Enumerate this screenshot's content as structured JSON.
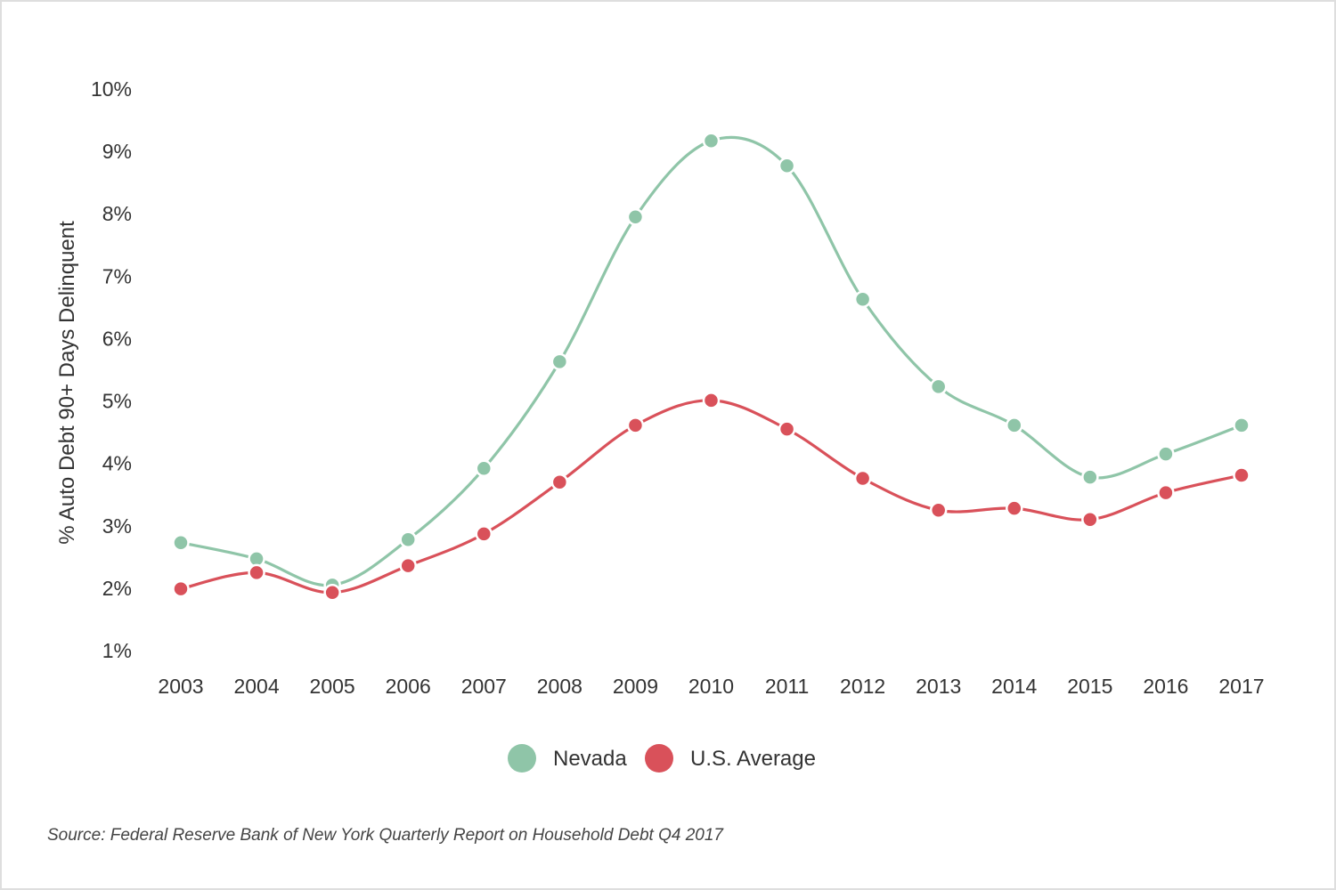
{
  "chart_data": {
    "type": "line",
    "title": "",
    "xlabel": "",
    "ylabel": "% Auto Debt 90+ Days Delinquent",
    "x": [
      "2003",
      "2004",
      "2005",
      "2006",
      "2007",
      "2008",
      "2009",
      "2010",
      "2011",
      "2012",
      "2013",
      "2014",
      "2015",
      "2016",
      "2017"
    ],
    "ylim": [
      1,
      10
    ],
    "yticks": [
      "1%",
      "2%",
      "3%",
      "4%",
      "5%",
      "6%",
      "7%",
      "8%",
      "9%",
      "10%"
    ],
    "ytick_values": [
      1,
      2,
      3,
      4,
      5,
      6,
      7,
      8,
      9,
      10
    ],
    "grid": false,
    "smooth": true,
    "legend_position": "bottom-center",
    "series": [
      {
        "name": "Nevada",
        "color": "#8fc5a8",
        "values": [
          2.73,
          2.47,
          2.05,
          2.78,
          3.92,
          5.63,
          7.95,
          9.17,
          8.77,
          6.63,
          5.23,
          4.61,
          3.78,
          4.15,
          4.61
        ]
      },
      {
        "name": "U.S. Average",
        "color": "#d9515a",
        "values": [
          1.99,
          2.25,
          1.93,
          2.36,
          2.87,
          3.7,
          4.61,
          5.01,
          4.55,
          3.76,
          3.25,
          3.28,
          3.1,
          3.53,
          3.81
        ]
      }
    ]
  },
  "source_note": "Source: Federal Reserve Bank of New York Quarterly Report on Household Debt Q4 2017"
}
